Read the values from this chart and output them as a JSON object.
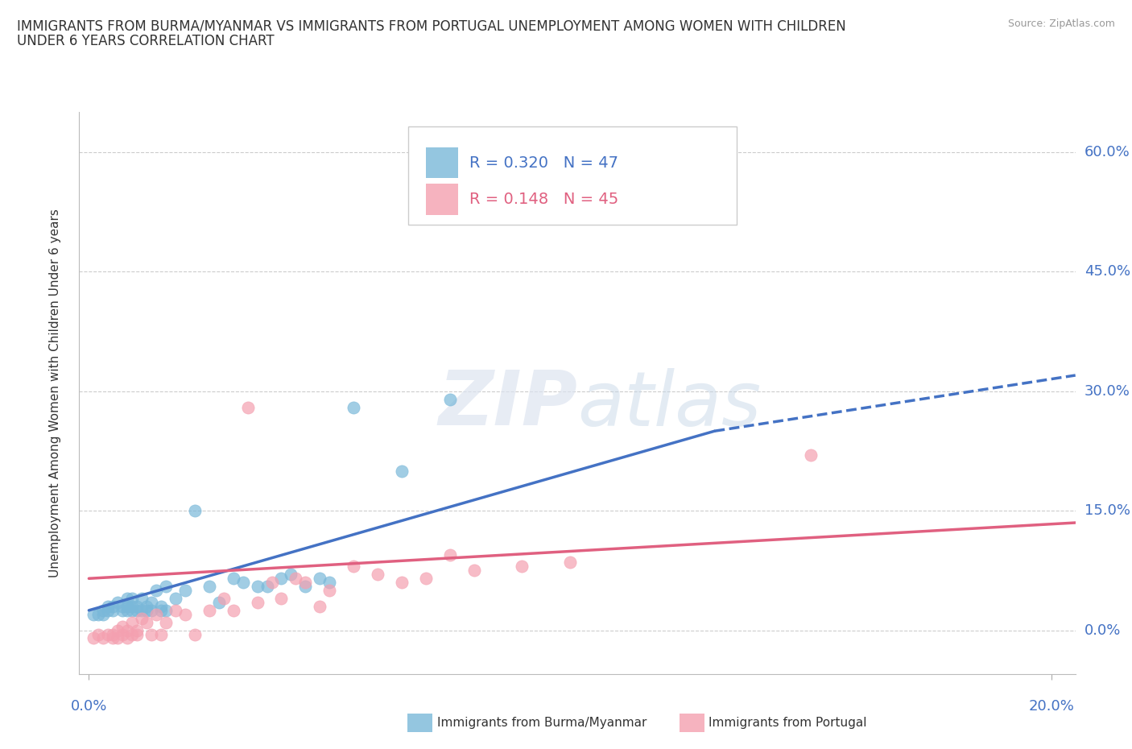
{
  "title_line1": "IMMIGRANTS FROM BURMA/MYANMAR VS IMMIGRANTS FROM PORTUGAL UNEMPLOYMENT AMONG WOMEN WITH CHILDREN",
  "title_line2": "UNDER 6 YEARS CORRELATION CHART",
  "source": "Source: ZipAtlas.com",
  "ylabel_label": "Unemployment Among Women with Children Under 6 years",
  "xlim": [
    -0.002,
    0.205
  ],
  "ylim": [
    -0.055,
    0.65
  ],
  "yticks": [
    0.0,
    0.15,
    0.3,
    0.45,
    0.6
  ],
  "xticks": [
    0.0,
    0.2
  ],
  "legend_r1": "R = 0.320",
  "legend_n1": "N = 47",
  "legend_r2": "R = 0.148",
  "legend_n2": "N = 45",
  "color_burma": "#7ab8d9",
  "color_portugal": "#f4a0b0",
  "color_burma_line": "#4472c4",
  "color_portugal_line": "#e06080",
  "watermark_zip": "ZIP",
  "watermark_atlas": "atlas",
  "scatter_burma_x": [
    0.001,
    0.002,
    0.003,
    0.003,
    0.004,
    0.004,
    0.005,
    0.005,
    0.006,
    0.007,
    0.007,
    0.008,
    0.008,
    0.008,
    0.009,
    0.009,
    0.009,
    0.01,
    0.01,
    0.011,
    0.011,
    0.012,
    0.012,
    0.013,
    0.013,
    0.014,
    0.015,
    0.015,
    0.016,
    0.016,
    0.018,
    0.02,
    0.022,
    0.025,
    0.027,
    0.03,
    0.032,
    0.035,
    0.037,
    0.04,
    0.042,
    0.045,
    0.048,
    0.05,
    0.055,
    0.065,
    0.075
  ],
  "scatter_burma_y": [
    0.02,
    0.02,
    0.02,
    0.025,
    0.025,
    0.03,
    0.025,
    0.03,
    0.035,
    0.025,
    0.03,
    0.025,
    0.03,
    0.04,
    0.025,
    0.03,
    0.04,
    0.025,
    0.03,
    0.025,
    0.04,
    0.025,
    0.03,
    0.025,
    0.035,
    0.05,
    0.025,
    0.03,
    0.025,
    0.055,
    0.04,
    0.05,
    0.15,
    0.055,
    0.035,
    0.065,
    0.06,
    0.055,
    0.055,
    0.065,
    0.07,
    0.055,
    0.065,
    0.06,
    0.28,
    0.2,
    0.29
  ],
  "scatter_portugal_x": [
    0.001,
    0.002,
    0.003,
    0.004,
    0.005,
    0.005,
    0.006,
    0.006,
    0.007,
    0.007,
    0.008,
    0.008,
    0.009,
    0.009,
    0.01,
    0.01,
    0.011,
    0.012,
    0.013,
    0.014,
    0.015,
    0.016,
    0.018,
    0.02,
    0.022,
    0.025,
    0.028,
    0.03,
    0.033,
    0.035,
    0.038,
    0.04,
    0.043,
    0.045,
    0.048,
    0.05,
    0.055,
    0.06,
    0.065,
    0.07,
    0.075,
    0.08,
    0.09,
    0.1,
    0.15
  ],
  "scatter_portugal_y": [
    -0.01,
    -0.005,
    -0.01,
    -0.005,
    -0.01,
    -0.005,
    -0.01,
    0.0,
    -0.005,
    0.005,
    -0.01,
    0.0,
    -0.005,
    0.01,
    -0.005,
    0.0,
    0.015,
    0.01,
    -0.005,
    0.02,
    -0.005,
    0.01,
    0.025,
    0.02,
    -0.005,
    0.025,
    0.04,
    0.025,
    0.28,
    0.035,
    0.06,
    0.04,
    0.065,
    0.06,
    0.03,
    0.05,
    0.08,
    0.07,
    0.06,
    0.065,
    0.095,
    0.075,
    0.08,
    0.085,
    0.22
  ],
  "trend_burma_x0": 0.0,
  "trend_burma_y0": 0.025,
  "trend_burma_x1": 0.13,
  "trend_burma_y1": 0.25,
  "trend_burma_dash_x0": 0.13,
  "trend_burma_dash_y0": 0.25,
  "trend_burma_dash_x1": 0.205,
  "trend_burma_dash_y1": 0.32,
  "trend_portugal_x0": 0.0,
  "trend_portugal_y0": 0.065,
  "trend_portugal_x1": 0.205,
  "trend_portugal_y1": 0.135,
  "background_color": "#ffffff",
  "grid_color": "#cccccc"
}
